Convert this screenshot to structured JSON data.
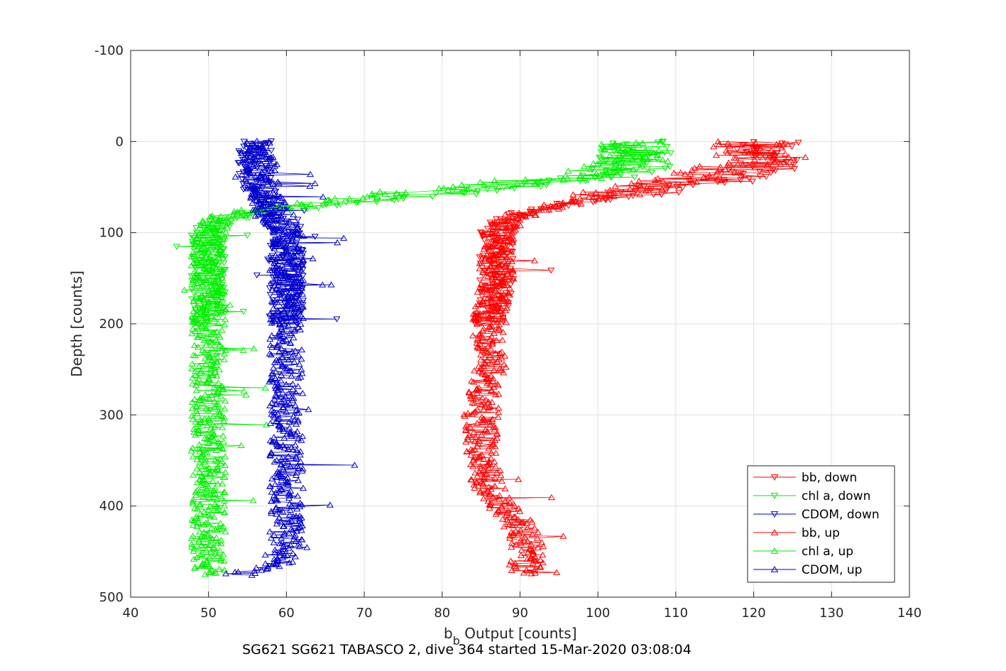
{
  "chart_data": {
    "type": "scatter",
    "xlabel": "b",
    "xlabel_sub": "b",
    "xlabel_rest": " Output [counts]",
    "ylabel": "Depth [counts]",
    "caption": "SG621 SG621 TABASCO 2, dive 364 started 15-Mar-2020 03:08:04",
    "xlim": [
      40,
      140
    ],
    "ylim": [
      -100,
      500
    ],
    "y_reversed": true,
    "grid": true,
    "xticks": [
      40,
      50,
      60,
      70,
      80,
      90,
      100,
      110,
      120,
      130,
      140
    ],
    "yticks": [
      -100,
      0,
      100,
      200,
      300,
      400,
      500
    ],
    "legend_position": "bottom-right",
    "series": [
      {
        "name": "bb, down",
        "color": "#ff0000",
        "marker": "triangle-down",
        "connected": true,
        "profile": [
          [
            0,
            122
          ],
          [
            10,
            121
          ],
          [
            20,
            121
          ],
          [
            30,
            122
          ],
          [
            40,
            118
          ],
          [
            50,
            110
          ],
          [
            60,
            103
          ],
          [
            70,
            95
          ],
          [
            80,
            90
          ],
          [
            90,
            88
          ],
          [
            100,
            87
          ],
          [
            120,
            87
          ],
          [
            140,
            87
          ],
          [
            160,
            87
          ],
          [
            180,
            87
          ],
          [
            200,
            86
          ]
        ]
      },
      {
        "name": "chl a, down",
        "color": "#00ee00",
        "marker": "triangle-down",
        "connected": true,
        "profile": [
          [
            0,
            106
          ],
          [
            10,
            105
          ],
          [
            20,
            105
          ],
          [
            30,
            104
          ],
          [
            40,
            100
          ],
          [
            50,
            88
          ],
          [
            60,
            78
          ],
          [
            70,
            65
          ],
          [
            80,
            55
          ],
          [
            90,
            51
          ],
          [
            100,
            50
          ],
          [
            120,
            50
          ],
          [
            140,
            50
          ],
          [
            160,
            50
          ],
          [
            180,
            50
          ],
          [
            200,
            50
          ]
        ]
      },
      {
        "name": "CDOM, down",
        "color": "#0000cc",
        "marker": "triangle-down",
        "connected": true,
        "profile": [
          [
            0,
            56
          ],
          [
            20,
            56
          ],
          [
            40,
            56
          ],
          [
            60,
            57
          ],
          [
            70,
            58
          ],
          [
            80,
            59
          ],
          [
            100,
            60
          ],
          [
            120,
            60
          ],
          [
            140,
            60
          ],
          [
            160,
            60
          ],
          [
            180,
            60
          ],
          [
            200,
            60
          ]
        ]
      },
      {
        "name": "bb, up",
        "color": "#ff0000",
        "marker": "triangle-up",
        "connected": true,
        "profile": [
          [
            0,
            118
          ],
          [
            20,
            120
          ],
          [
            40,
            112
          ],
          [
            60,
            100
          ],
          [
            80,
            90
          ],
          [
            100,
            87
          ],
          [
            150,
            87
          ],
          [
            200,
            86
          ],
          [
            250,
            86
          ],
          [
            300,
            85
          ],
          [
            350,
            85
          ],
          [
            380,
            86
          ],
          [
            400,
            88
          ],
          [
            420,
            90
          ],
          [
            440,
            91
          ],
          [
            460,
            91
          ],
          [
            475,
            90
          ]
        ]
      },
      {
        "name": "chl a, up",
        "color": "#00ee00",
        "marker": "triangle-up",
        "connected": true,
        "profile": [
          [
            0,
            105
          ],
          [
            20,
            106
          ],
          [
            40,
            95
          ],
          [
            60,
            70
          ],
          [
            80,
            52
          ],
          [
            100,
            50
          ],
          [
            150,
            50
          ],
          [
            200,
            50
          ],
          [
            250,
            50
          ],
          [
            300,
            50
          ],
          [
            350,
            50
          ],
          [
            400,
            50
          ],
          [
            450,
            50
          ],
          [
            475,
            50
          ]
        ]
      },
      {
        "name": "CDOM, up",
        "color": "#0000cc",
        "marker": "triangle-up",
        "connected": true,
        "profile": [
          [
            0,
            56
          ],
          [
            40,
            57
          ],
          [
            80,
            58
          ],
          [
            100,
            60
          ],
          [
            150,
            60
          ],
          [
            200,
            60
          ],
          [
            250,
            60
          ],
          [
            300,
            60
          ],
          [
            350,
            60
          ],
          [
            400,
            60
          ],
          [
            440,
            60
          ],
          [
            460,
            59
          ],
          [
            470,
            56
          ],
          [
            475,
            54
          ]
        ]
      }
    ]
  }
}
